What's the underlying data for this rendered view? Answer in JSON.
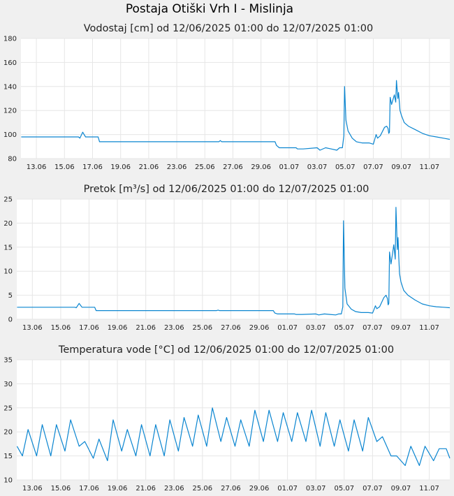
{
  "page_title": "Postaja Otiški Vrh I - Mislinja",
  "colors": {
    "line": "#0a85d0",
    "grid": "#e6e6e6",
    "plot_bg": "#ffffff",
    "page_bg": "#f0f0f0"
  },
  "chart_data": [
    {
      "type": "line",
      "title": "Vodostaj [cm] od 12/06/2025 01:00 do 12/07/2025 01:00",
      "xlabel": "",
      "ylabel": "",
      "xlim": [
        11.9,
        42.45
      ],
      "ylim": [
        80,
        180
      ],
      "yticks": [
        "80",
        "100",
        "120",
        "140",
        "160",
        "180"
      ],
      "xticks": [
        "13.06",
        "15.06",
        "17.06",
        "19.06",
        "21.06",
        "23.06",
        "25.06",
        "27.06",
        "29.06",
        "01.07",
        "03.07",
        "05.07",
        "07.07",
        "09.07",
        "11.07"
      ],
      "grid": true,
      "series": [
        {
          "x": [
            11.92,
            14.0,
            16.0,
            16.1,
            16.3,
            16.4,
            16.5,
            16.7,
            17.4,
            17.5,
            22.0,
            26.0,
            26.1,
            26.2,
            30.0,
            30.1,
            30.3,
            30.7,
            31.5,
            31.6,
            32.0,
            33.0,
            33.2,
            33.6,
            34.0,
            34.4,
            34.6,
            34.8,
            34.9,
            34.95,
            35.05,
            35.2,
            35.5,
            35.8,
            36.2,
            36.7,
            37.0,
            37.1,
            37.2,
            37.3,
            37.5,
            37.8,
            37.95,
            38.05,
            38.1,
            38.15,
            38.2,
            38.3,
            38.5,
            38.6,
            38.65,
            38.75,
            38.8,
            38.85,
            38.9,
            39.0,
            39.2,
            39.5,
            40.0,
            40.5,
            41.0,
            41.5,
            42.0,
            42.45
          ],
          "y": [
            98,
            98,
            98,
            97,
            102,
            100,
            98,
            98,
            98,
            94,
            94,
            94,
            95,
            94,
            94,
            91,
            89,
            89,
            89,
            88,
            88,
            89,
            87,
            89,
            88,
            87,
            89,
            89,
            99,
            140,
            112,
            103,
            97,
            94,
            93,
            93,
            92,
            96,
            100,
            97,
            99,
            106,
            107,
            105,
            101,
            102,
            131,
            125,
            133,
            127,
            145,
            130,
            135,
            128,
            120,
            116,
            110,
            107,
            104,
            101,
            99,
            98,
            97,
            96
          ]
        }
      ]
    },
    {
      "type": "line",
      "title": "Pretok [m³/s] od 12/06/2025 01:00 do 12/07/2025 01:00",
      "xlabel": "",
      "ylabel": "",
      "xlim": [
        11.9,
        42.45
      ],
      "ylim": [
        0,
        25
      ],
      "yticks": [
        "0",
        "5",
        "10",
        "15",
        "20",
        "25"
      ],
      "xticks": [
        "13.06",
        "15.06",
        "17.06",
        "19.06",
        "21.06",
        "23.06",
        "25.06",
        "27.06",
        "29.06",
        "01.07",
        "03.07",
        "05.07",
        "07.07",
        "09.07",
        "11.07"
      ],
      "grid": true,
      "series": [
        {
          "x": [
            11.92,
            14.0,
            16.0,
            16.1,
            16.3,
            16.4,
            16.5,
            16.7,
            17.4,
            17.5,
            22.0,
            26.0,
            26.1,
            26.2,
            30.0,
            30.1,
            30.3,
            30.7,
            31.5,
            31.6,
            32.0,
            33.0,
            33.2,
            33.6,
            34.0,
            34.4,
            34.6,
            34.8,
            34.9,
            34.95,
            35.05,
            35.2,
            35.5,
            35.8,
            36.2,
            36.7,
            37.0,
            37.1,
            37.2,
            37.3,
            37.5,
            37.8,
            37.95,
            38.05,
            38.1,
            38.15,
            38.2,
            38.3,
            38.5,
            38.6,
            38.65,
            38.75,
            38.8,
            38.85,
            38.9,
            39.0,
            39.2,
            39.5,
            40.0,
            40.5,
            41.0,
            41.5,
            42.0,
            42.45
          ],
          "y": [
            2.5,
            2.5,
            2.5,
            2.4,
            3.3,
            2.9,
            2.5,
            2.5,
            2.5,
            1.8,
            1.8,
            1.8,
            1.9,
            1.8,
            1.8,
            1.3,
            1.1,
            1.1,
            1.1,
            1.0,
            1.0,
            1.1,
            0.9,
            1.1,
            1.0,
            0.9,
            1.1,
            1.1,
            2.6,
            20.5,
            6.5,
            3.2,
            2.1,
            1.6,
            1.4,
            1.4,
            1.3,
            2.0,
            2.8,
            2.2,
            2.6,
            4.5,
            5.0,
            4.3,
            3.0,
            3.3,
            14.0,
            11.5,
            15.5,
            12.5,
            23.3,
            14.5,
            17.0,
            13.0,
            9.5,
            7.8,
            6.0,
            5.0,
            4.0,
            3.2,
            2.8,
            2.6,
            2.5,
            2.4
          ]
        }
      ]
    },
    {
      "type": "line",
      "title": "Temperatura vode [°C] od 12/06/2025 01:00 do 12/07/2025 01:00",
      "xlabel": "",
      "ylabel": "",
      "xlim": [
        11.9,
        42.45
      ],
      "ylim": [
        10,
        35
      ],
      "yticks": [
        "10",
        "15",
        "20",
        "25",
        "30",
        "35"
      ],
      "xticks": [
        "13.06",
        "15.06",
        "17.06",
        "19.06",
        "21.06",
        "23.06",
        "25.06",
        "27.06",
        "29.06",
        "01.07",
        "03.07",
        "05.07",
        "07.07",
        "09.07",
        "11.07"
      ],
      "grid": true,
      "series": [
        {
          "x": [
            11.92,
            12.3,
            12.7,
            13.3,
            13.7,
            14.3,
            14.7,
            15.3,
            15.7,
            16.3,
            16.7,
            17.3,
            17.7,
            18.3,
            18.7,
            19.3,
            19.7,
            20.3,
            20.7,
            21.3,
            21.7,
            22.3,
            22.7,
            23.3,
            23.7,
            24.3,
            24.7,
            25.3,
            25.7,
            26.3,
            26.7,
            27.3,
            27.7,
            28.3,
            28.7,
            29.3,
            29.7,
            30.3,
            30.7,
            31.3,
            31.7,
            32.3,
            32.7,
            33.3,
            33.7,
            34.3,
            34.7,
            35.3,
            35.7,
            36.3,
            36.7,
            37.3,
            37.7,
            38.3,
            38.7,
            39.3,
            39.7,
            40.3,
            40.7,
            41.3,
            41.7,
            42.2,
            42.45
          ],
          "y": [
            17,
            15,
            20.5,
            15,
            21.5,
            15,
            21.5,
            16,
            22.5,
            17,
            18,
            14.5,
            18.5,
            14,
            22.5,
            16,
            20.5,
            15,
            21.5,
            15,
            21.5,
            15,
            22.5,
            16,
            23,
            17,
            23.5,
            17,
            25,
            18,
            23,
            17,
            22.5,
            17,
            24.5,
            18,
            24.5,
            18,
            24,
            18,
            24,
            18,
            24.5,
            17,
            24,
            17,
            22.5,
            16,
            22.5,
            16,
            23,
            18,
            19,
            15,
            15,
            13,
            17,
            13,
            17,
            14,
            16.5,
            16.5,
            14.5
          ]
        }
      ]
    }
  ]
}
